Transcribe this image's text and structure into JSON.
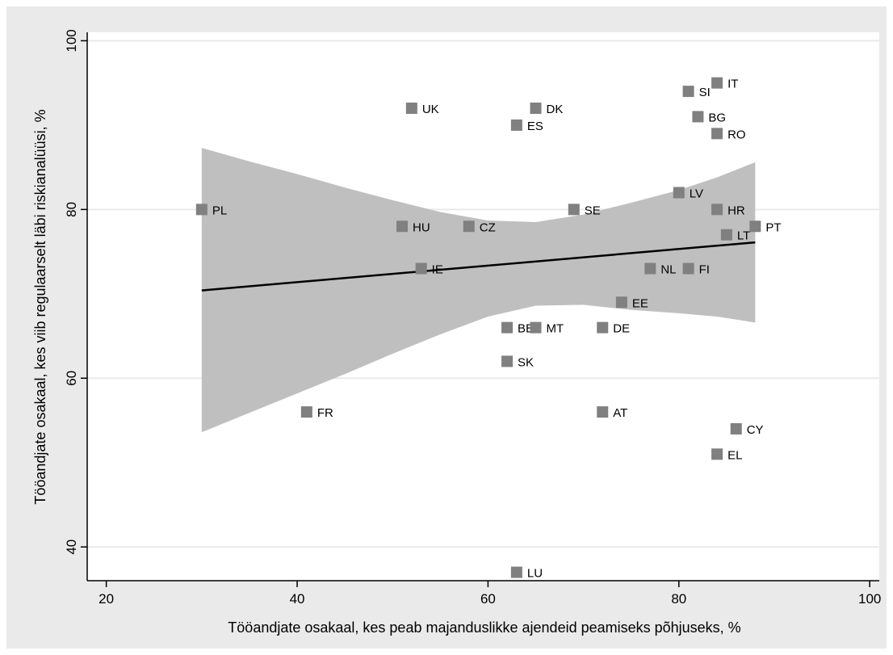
{
  "chart_data": {
    "type": "scatter",
    "xlabel": "Tööandjate osakaal, kes peab majanduslikke ajendeid peamiseks põhjuseks, %",
    "ylabel": "Tööandjate osakaal, kes viib regulaarselt läbi riskianalüüsi, %",
    "xlim": [
      18,
      101
    ],
    "ylim": [
      36,
      101
    ],
    "xticks": [
      20,
      40,
      60,
      80,
      100
    ],
    "yticks": [
      40,
      60,
      80,
      100
    ],
    "grid": "horizontal",
    "points": [
      {
        "label": "PL",
        "x": 30,
        "y": 80
      },
      {
        "label": "FR",
        "x": 41,
        "y": 56
      },
      {
        "label": "HU",
        "x": 51,
        "y": 78
      },
      {
        "label": "UK",
        "x": 52,
        "y": 92
      },
      {
        "label": "IE",
        "x": 53,
        "y": 73
      },
      {
        "label": "CZ",
        "x": 58,
        "y": 78
      },
      {
        "label": "BE",
        "x": 62,
        "y": 66
      },
      {
        "label": "SK",
        "x": 62,
        "y": 62
      },
      {
        "label": "ES",
        "x": 63,
        "y": 90
      },
      {
        "label": "LU",
        "x": 63,
        "y": 37
      },
      {
        "label": "DK",
        "x": 65,
        "y": 92
      },
      {
        "label": "MT",
        "x": 65,
        "y": 66
      },
      {
        "label": "SE",
        "x": 69,
        "y": 80
      },
      {
        "label": "DE",
        "x": 72,
        "y": 66
      },
      {
        "label": "AT",
        "x": 72,
        "y": 56
      },
      {
        "label": "EE",
        "x": 74,
        "y": 69
      },
      {
        "label": "NL",
        "x": 77,
        "y": 73
      },
      {
        "label": "LV",
        "x": 80,
        "y": 82
      },
      {
        "label": "SI",
        "x": 81,
        "y": 94
      },
      {
        "label": "FI",
        "x": 81,
        "y": 73
      },
      {
        "label": "BG",
        "x": 82,
        "y": 91
      },
      {
        "label": "IT",
        "x": 84,
        "y": 95
      },
      {
        "label": "RO",
        "x": 84,
        "y": 89
      },
      {
        "label": "HR",
        "x": 84,
        "y": 80
      },
      {
        "label": "EL",
        "x": 84,
        "y": 51
      },
      {
        "label": "LT",
        "x": 85,
        "y": 77
      },
      {
        "label": "CY",
        "x": 86,
        "y": 54
      },
      {
        "label": "PT",
        "x": 88,
        "y": 78
      }
    ],
    "fit": {
      "x": [
        30,
        88
      ],
      "y": [
        70.4,
        76.1
      ]
    },
    "ci_band": {
      "x": [
        30,
        35,
        40,
        45,
        50,
        55,
        60,
        65,
        70,
        75,
        80,
        84,
        88
      ],
      "upper": [
        87.3,
        85.7,
        84.2,
        82.6,
        81.1,
        79.7,
        78.7,
        78.5,
        79.4,
        80.8,
        82.3,
        83.8,
        85.6
      ],
      "lower": [
        53.6,
        55.9,
        58.2,
        60.5,
        62.9,
        65.2,
        67.3,
        68.6,
        68.7,
        68.1,
        67.7,
        67.3,
        66.6
      ]
    },
    "colors": {
      "background": "#eaeaea",
      "plot_area": "#ffffff",
      "marker": "#808080",
      "ci_band": "#bfbfbf",
      "fit_line": "#000000",
      "grid": "#eaeaea"
    }
  }
}
